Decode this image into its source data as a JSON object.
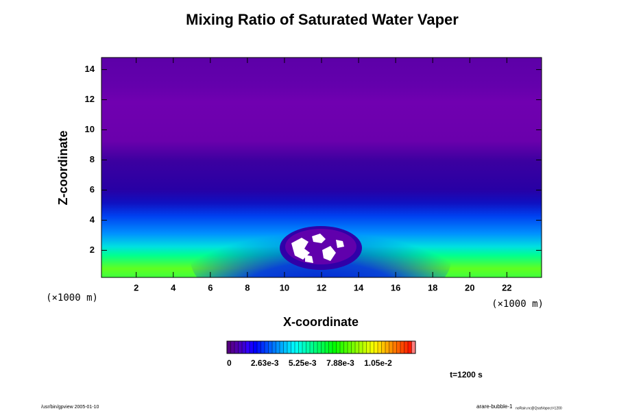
{
  "chart_data": {
    "type": "contour",
    "title": "Mixing Ratio of Saturated Water Vaper",
    "x_label": "X-coordinate",
    "y_label": "Z-coordinate",
    "x_unit": "(×1000 m)",
    "y_unit": "(×1000 m)",
    "xlim": [
      0.125,
      23.875
    ],
    "ylim": [
      0.2,
      14.8
    ],
    "xticks": [
      2,
      4,
      6,
      8,
      10,
      12,
      14,
      16,
      18,
      20,
      22
    ],
    "yticks": [
      2,
      4,
      6,
      8,
      10,
      12,
      14
    ],
    "colorbar": {
      "lim": [
        0,
        0.0131
      ],
      "ticks": [
        0,
        {
          "value": 0.00263,
          "label": "2.63e-3"
        },
        {
          "value": 0.00525,
          "label": "5.25e-3"
        },
        {
          "value": 0.00788,
          "label": "7.88e-3"
        },
        {
          "value": 0.0105,
          "label": "1.05e-2"
        }
      ]
    },
    "time_label": "t=1200 s",
    "footer_left": "/usr/bin/gpview 2005-01-10",
    "footer_right": "arare-bubble-1",
    "footer_right_sub": "noRain.nc@QsatVapor,t=1200"
  }
}
